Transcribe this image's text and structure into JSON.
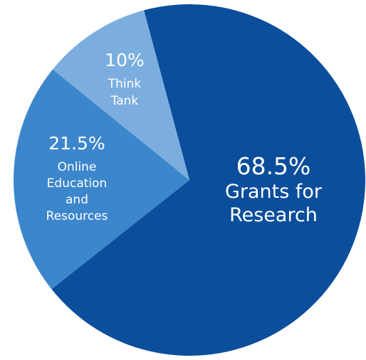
{
  "chart_data": {
    "type": "pie",
    "title": "",
    "start_angle_deg": -15,
    "direction": "clockwise",
    "slices": [
      {
        "label": "Grants for Research",
        "value": 68.5,
        "value_label": "68.5%",
        "label_lines": [
          "Grants for",
          "Research"
        ],
        "color": "#0b4e9b",
        "label_color": "#ffffff"
      },
      {
        "label": "Online Education and Resources",
        "value": 21.5,
        "value_label": "21.5%",
        "label_lines": [
          "Online",
          "Education",
          "and",
          "Resources"
        ],
        "color": "#3c86cc",
        "label_color": "#ffffff"
      },
      {
        "label": "Think Tank",
        "value": 10,
        "value_label": "10%",
        "label_lines": [
          "Think",
          "Tank"
        ],
        "color": "#7baedf",
        "label_color": "#ffffff"
      }
    ]
  }
}
